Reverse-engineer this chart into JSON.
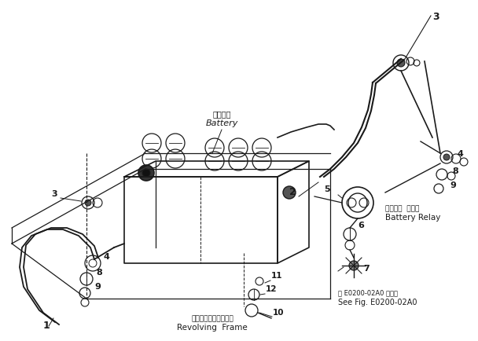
{
  "bg_color": "#ffffff",
  "line_color": "#1a1a1a",
  "figsize": [
    6.08,
    4.34
  ],
  "dpi": 100,
  "labels": {
    "battery_jp": "バッテリ",
    "battery_en": "Battery",
    "relay_jp": "バッテリ  リレー",
    "relay_en": "Battery Relay",
    "frame_jp": "レボルビングフレーム",
    "frame_en": "Revolving  Frame",
    "see_fig_jp": "図 E0200-02A0 図参照",
    "see_fig_en": "See Fig. E0200-02A0"
  }
}
